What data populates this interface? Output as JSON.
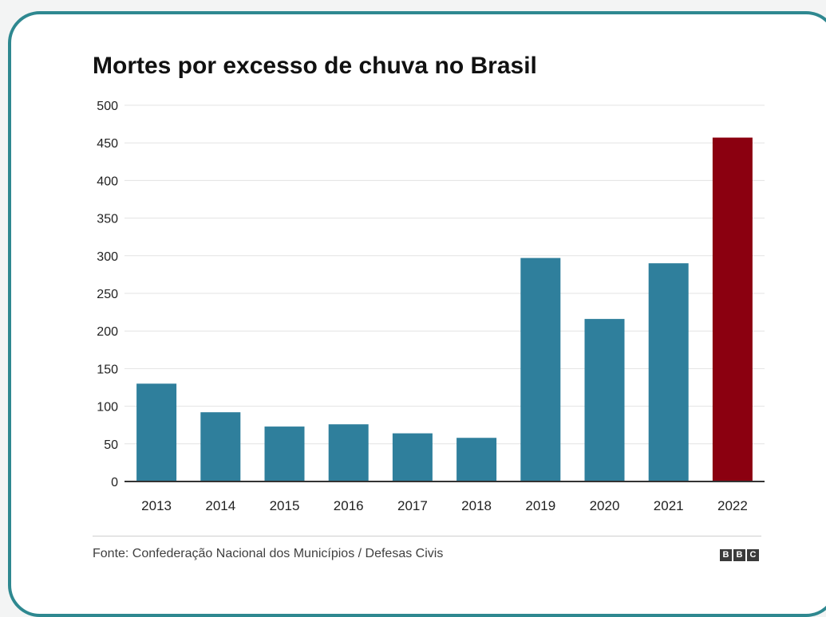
{
  "colors": {
    "frame": "#2e8890",
    "bar": "#2f7f9c",
    "highlight": "#8b0010",
    "grid": "#e3e3e3",
    "axis": "#333333"
  },
  "chart_data": {
    "type": "bar",
    "title": "Mortes por excesso de chuva no Brasil",
    "categories": [
      "2013",
      "2014",
      "2015",
      "2016",
      "2017",
      "2018",
      "2019",
      "2020",
      "2021",
      "2022"
    ],
    "values": [
      130,
      92,
      73,
      76,
      64,
      58,
      297,
      216,
      290,
      457
    ],
    "highlight_index": 9,
    "ylim": [
      0,
      500
    ],
    "yticks": [
      0,
      50,
      100,
      150,
      200,
      250,
      300,
      350,
      400,
      450,
      500
    ],
    "grid": true,
    "source": "Fonte: Confederação Nacional dos Municípios / Defesas Civis"
  },
  "logo": [
    "B",
    "B",
    "C"
  ]
}
